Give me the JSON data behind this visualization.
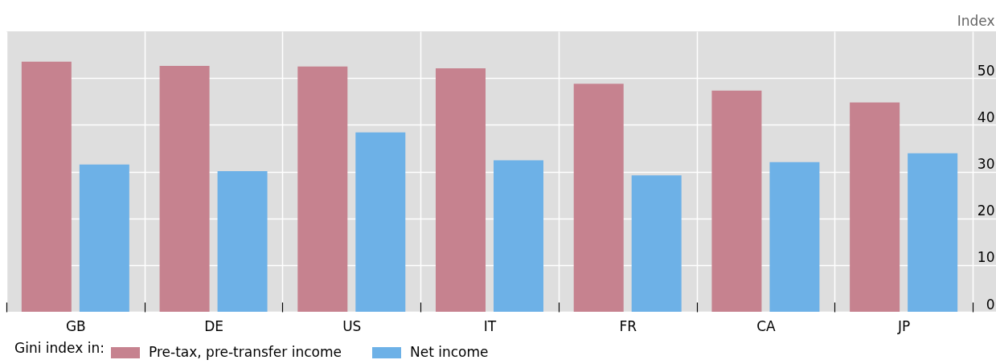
{
  "chart_data": {
    "type": "bar",
    "ylabel": "Index",
    "legend_title": "Gini index in:",
    "categories": [
      "GB",
      "DE",
      "US",
      "IT",
      "FR",
      "CA",
      "JP"
    ],
    "series": [
      {
        "name": "Pre-tax, pre-transfer income",
        "color": "#c6828f",
        "values": [
          53.5,
          52.6,
          52.5,
          52.1,
          48.8,
          47.3,
          44.8
        ]
      },
      {
        "name": "Net income",
        "color": "#6db1e7",
        "values": [
          31.5,
          30.1,
          38.4,
          32.4,
          29.2,
          32.0,
          33.9
        ]
      }
    ],
    "ylim": [
      0,
      60
    ],
    "yticks": [
      0,
      10,
      20,
      30,
      40,
      50
    ],
    "grid": true,
    "legend": "bottom left"
  }
}
